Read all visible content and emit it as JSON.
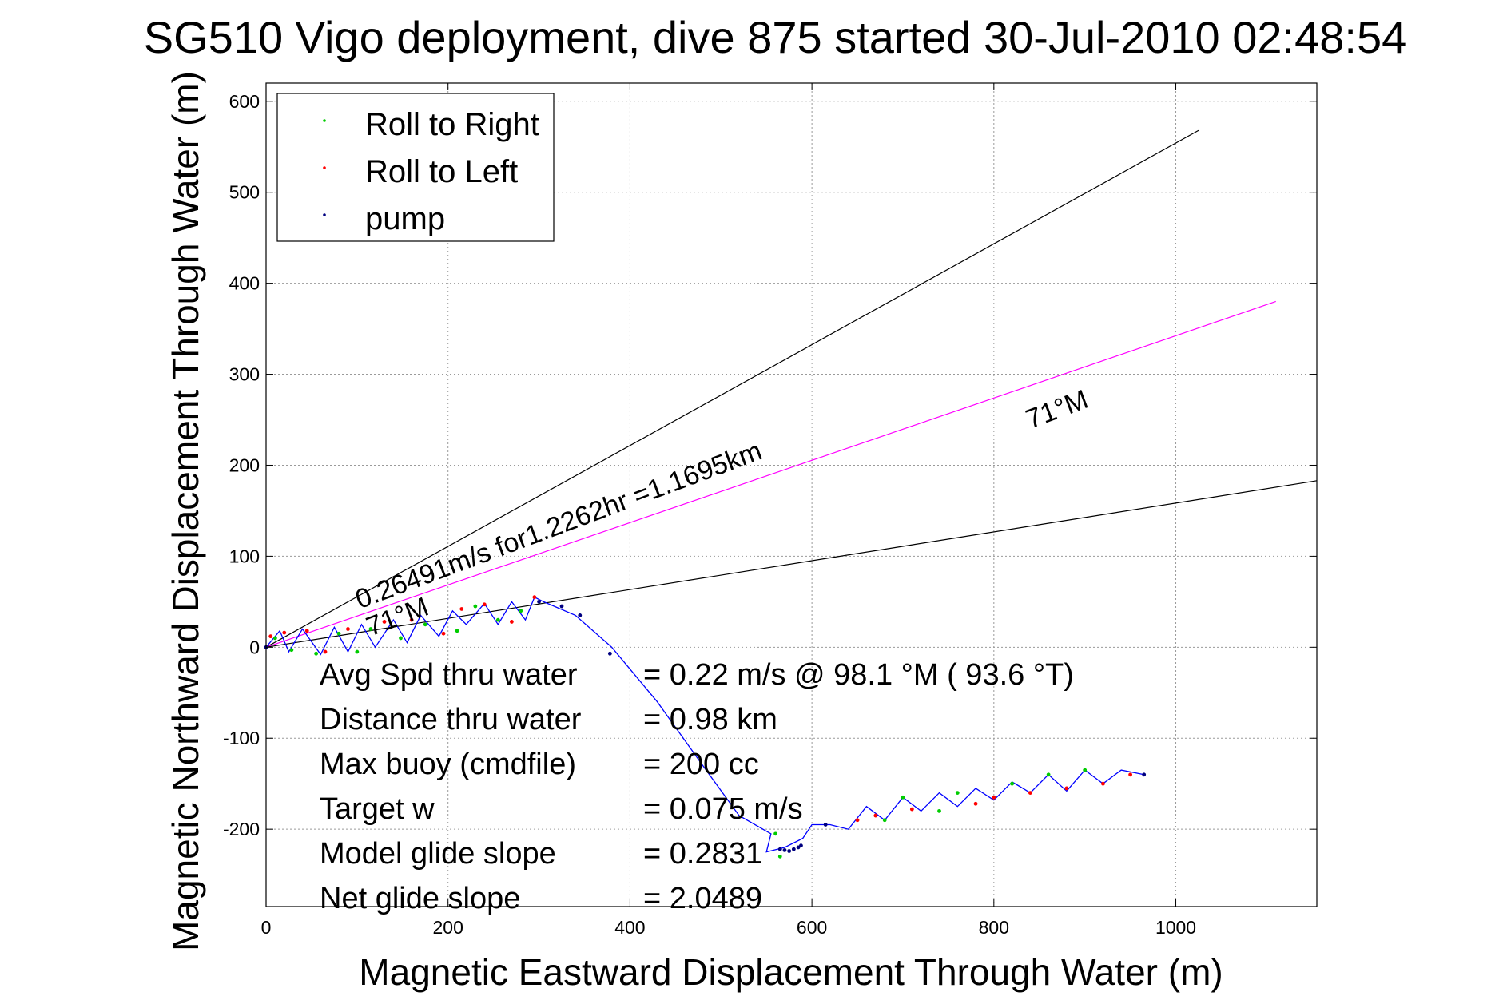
{
  "chart_data": {
    "type": "scatter",
    "title": "SG510 Vigo deployment, dive 875 started 30-Jul-2010 02:48:54",
    "xlabel": "Magnetic Eastward Displacement Through Water (m)",
    "ylabel": "Magnetic Northward Displacement Through Water (m)",
    "xlim": [
      0,
      1155
    ],
    "ylim": [
      -285,
      620
    ],
    "xticks": [
      "0",
      "200",
      "400",
      "600",
      "800",
      "1000"
    ],
    "xtick_values": [
      0,
      200,
      400,
      600,
      800,
      1000
    ],
    "yticks": [
      "600",
      "500",
      "400",
      "300",
      "200",
      "100",
      "0",
      "-100",
      "-200"
    ],
    "ytick_values": [
      600,
      500,
      400,
      300,
      200,
      100,
      0,
      -100,
      -200
    ],
    "grid": true,
    "legend_position": "top-left",
    "legend": [
      {
        "label": "Roll to Right",
        "color": "#00cc00"
      },
      {
        "label": "Roll to Left",
        "color": "#ff0000"
      },
      {
        "label": "pump",
        "color": "#000080"
      }
    ],
    "reference_lines": [
      {
        "name": "upper-heading-line",
        "color": "#000000",
        "x": [
          0,
          1025
        ],
        "y": [
          0,
          568
        ]
      },
      {
        "name": "mean-heading-line",
        "color": "#ff00ff",
        "x": [
          0,
          1110
        ],
        "y": [
          0,
          380
        ]
      },
      {
        "name": "lower-heading-line",
        "color": "#000000",
        "x": [
          0,
          1155
        ],
        "y": [
          0,
          183
        ]
      }
    ],
    "track": {
      "color": "#0000ff",
      "x": [
        0,
        15,
        25,
        40,
        60,
        75,
        90,
        105,
        120,
        140,
        155,
        170,
        190,
        205,
        220,
        240,
        255,
        270,
        285,
        295,
        305,
        340,
        380,
        430,
        480,
        520,
        555,
        550,
        570,
        590,
        600,
        620,
        640,
        660,
        680,
        700,
        720,
        740,
        760,
        780,
        800,
        820,
        840,
        860,
        880,
        900,
        920,
        940,
        965
      ],
      "y": [
        0,
        18,
        -5,
        20,
        -8,
        22,
        -5,
        25,
        0,
        30,
        5,
        35,
        12,
        40,
        25,
        48,
        25,
        50,
        30,
        55,
        50,
        35,
        0,
        -60,
        -130,
        -185,
        -205,
        -225,
        -220,
        -210,
        -195,
        -195,
        -200,
        -175,
        -190,
        -165,
        -180,
        -160,
        -175,
        -155,
        -168,
        -148,
        -160,
        -140,
        -158,
        -135,
        -150,
        -135,
        -140
      ]
    },
    "points": {
      "roll_right": {
        "x": [
          10,
          28,
          55,
          80,
          100,
          115,
          148,
          175,
          210,
          230,
          255,
          280,
          560,
          565,
          680,
          700,
          740,
          760,
          820,
          860,
          900
        ],
        "y": [
          10,
          -3,
          -7,
          15,
          -5,
          20,
          10,
          25,
          18,
          45,
          30,
          40,
          -205,
          -230,
          -190,
          -165,
          -180,
          -160,
          -150,
          -140,
          -135
        ]
      },
      "roll_left": {
        "x": [
          5,
          20,
          45,
          65,
          90,
          130,
          160,
          195,
          215,
          240,
          270,
          295,
          650,
          670,
          710,
          780,
          800,
          840,
          880,
          920,
          950
        ],
        "y": [
          12,
          16,
          18,
          -5,
          20,
          28,
          30,
          15,
          42,
          47,
          28,
          55,
          -190,
          -185,
          -178,
          -172,
          -165,
          -160,
          -155,
          -150,
          -140
        ]
      },
      "pump": {
        "x": [
          0,
          300,
          325,
          345,
          378,
          565,
          570,
          575,
          580,
          585,
          588,
          615,
          965
        ],
        "y": [
          0,
          50,
          45,
          35,
          -7,
          -222,
          -223,
          -224,
          -222,
          -220,
          -218,
          -195,
          -140
        ]
      }
    },
    "annotations": [
      {
        "label": "speed",
        "text": "0.26491m/s for1.2262hr =1.1695km",
        "x": 103,
        "y": 42,
        "rotation": -20.5
      },
      {
        "label": "heading-upper",
        "text": "71°M",
        "x": 840,
        "y": 240,
        "rotation": -20.5
      },
      {
        "label": "heading-lower",
        "text": "71°M",
        "x": 115,
        "y": 12,
        "rotation": -20.5
      }
    ],
    "stats": [
      {
        "label": "Avg Spd thru water",
        "value": "=  0.22 m/s @  98.1 °M ( 93.6 °T)"
      },
      {
        "label": "Distance thru water",
        "value": "=  0.98 km"
      },
      {
        "label": "Max buoy (cmdfile)",
        "value": "= 200 cc"
      },
      {
        "label": "Target w",
        "value": "= 0.075 m/s"
      },
      {
        "label": "Model glide slope",
        "value": "= 0.2831"
      },
      {
        "label": "Net glide slope",
        "value": "= 2.0489"
      }
    ]
  }
}
